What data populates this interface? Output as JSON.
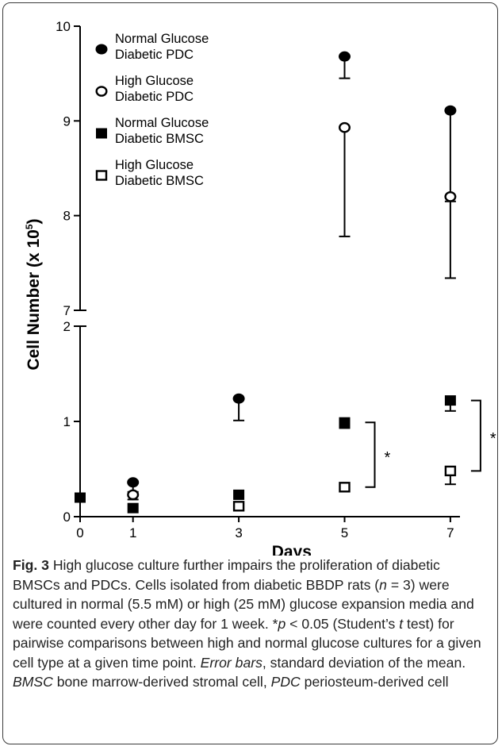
{
  "chart_data": {
    "type": "scatter",
    "xlabel": "Days",
    "ylabel_main": "Cell Number (x 10",
    "ylabel_sup": "5",
    "ylabel_end": ")",
    "x_ticks": [
      "0",
      "1",
      "3",
      "5",
      "7"
    ],
    "x_values": [
      0,
      1,
      3,
      5,
      7
    ],
    "y_ticks_lower": [
      "0",
      "1",
      "2"
    ],
    "y_ticks_upper": [
      "7",
      "8",
      "9",
      "10"
    ],
    "ylim_lower": [
      0,
      2
    ],
    "ylim_upper": [
      7,
      10
    ],
    "axis_break": true,
    "grid": false,
    "legend_position": "top-left",
    "series": [
      {
        "name": "Normal Glucose Diabetic PDC",
        "name_line1": "Normal Glucose",
        "name_line2": "Diabetic PDC",
        "marker": "filled-circle",
        "points": [
          {
            "x": 1,
            "y": 0.36,
            "err": 0.1
          },
          {
            "x": 3,
            "y": 1.24,
            "err": 0.23
          },
          {
            "x": 5,
            "y": 9.68,
            "err": 0.23
          },
          {
            "x": 7,
            "y": 9.11,
            "err": 1.77
          }
        ]
      },
      {
        "name": "High Glucose Diabetic PDC",
        "name_line1": "High Glucose",
        "name_line2": "Diabetic PDC",
        "marker": "open-circle",
        "points": [
          {
            "x": 1,
            "y": 0.23,
            "err": 0.05
          },
          {
            "x": 5,
            "y": 8.93,
            "err": 1.15
          },
          {
            "x": 7,
            "y": 8.2,
            "err": 0.05
          }
        ]
      },
      {
        "name": "Normal Glucose Diabetic BMSC",
        "name_line1": "Normal Glucose",
        "name_line2": "Diabetic BMSC",
        "marker": "filled-square",
        "points": [
          {
            "x": 0,
            "y": 0.2,
            "err": 0
          },
          {
            "x": 1,
            "y": 0.09,
            "err": 0
          },
          {
            "x": 3,
            "y": 0.23,
            "err": 0
          },
          {
            "x": 5,
            "y": 0.99,
            "err": 0.06
          },
          {
            "x": 7,
            "y": 1.22,
            "err": 0.11
          }
        ]
      },
      {
        "name": "High Glucose Diabetic BMSC",
        "name_line1": "High Glucose",
        "name_line2": "Diabetic BMSC",
        "marker": "open-square",
        "points": [
          {
            "x": 3,
            "y": 0.11,
            "err": 0
          },
          {
            "x": 5,
            "y": 0.31,
            "err": 0.02
          },
          {
            "x": 7,
            "y": 0.48,
            "err": 0.14
          }
        ]
      }
    ],
    "significance": [
      {
        "x": 5,
        "y_from": 0.31,
        "y_to": 0.99,
        "label": "*"
      },
      {
        "x": 7,
        "y_from": 0.48,
        "y_to": 1.22,
        "label": "*"
      }
    ]
  },
  "caption": {
    "fig_label": "Fig. 3",
    "t1": " High glucose culture further impairs the proliferation of diabetic BMSCs and PDCs. Cells isolated from diabetic BBDP rats (",
    "n_var": "n",
    "t2": " = 3) were cultured in normal (5.5 mM) or high (25 mM) glucose expansion media and were counted every other day for 1 week. *",
    "p_var": "p",
    "t3": " < 0.05 (Student’s ",
    "t_var": "t",
    "t4": " test) for pairwise comparisons between high and normal glucose cultures for a given cell type at a given time point. ",
    "err_label": "Error bars",
    "t5": ", standard deviation of the mean. ",
    "bmsc_abbr": "BMSC",
    "t6": " bone marrow-derived stromal cell, ",
    "pdc_abbr": "PDC",
    "t7": " periosteum-derived cell"
  }
}
